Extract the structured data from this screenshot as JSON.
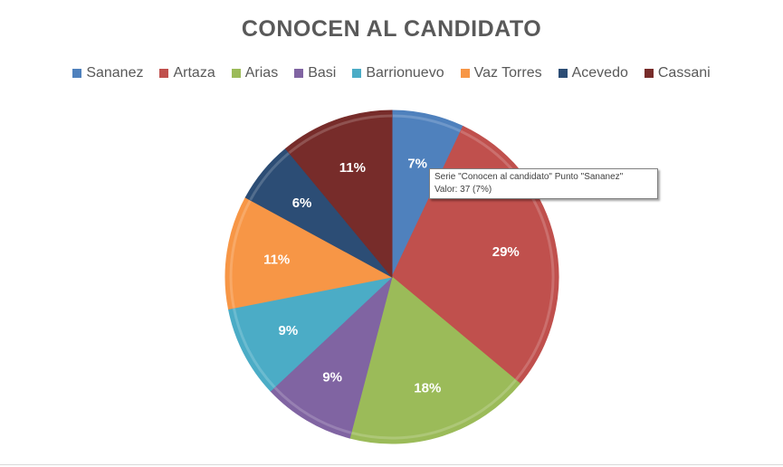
{
  "chart_data": {
    "type": "pie",
    "title": "CONOCEN AL CANDIDATO",
    "legend_position": "top",
    "categories": [
      "Sananez",
      "Artaza",
      "Arias",
      "Basi",
      "Barrionuevo",
      "Vaz Torres",
      "Acevedo",
      "Cassani"
    ],
    "values": [
      37,
      153,
      95,
      47,
      47,
      58,
      32,
      58
    ],
    "percent_labels": [
      "7%",
      "29%",
      "18%",
      "9%",
      "9%",
      "11%",
      "6%",
      "11%"
    ],
    "colors": [
      "#4F81BD",
      "#C0504D",
      "#9BBB59",
      "#8064A2",
      "#4BACC6",
      "#F79646",
      "#2C4D75",
      "#772C2A"
    ]
  },
  "tooltip": {
    "line1": "Serie \"Conocen al candidato\" Punto \"Sananez\"",
    "line2": "Valor: 37 (7%)"
  }
}
